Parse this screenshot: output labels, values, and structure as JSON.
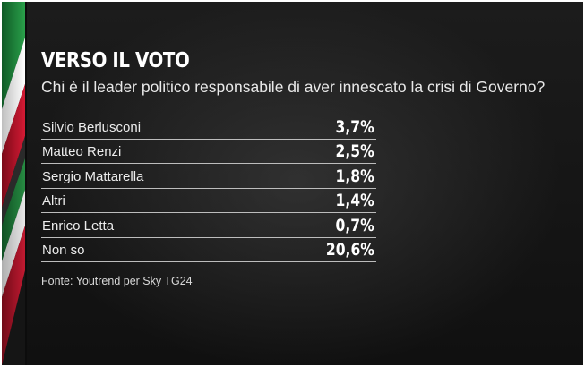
{
  "header": {
    "title": "VERSO IL VOTO",
    "subtitle": "Chi è il leader politico responsabile di aver innescato la crisi di Governo?"
  },
  "chart_data": {
    "type": "table",
    "title": "VERSO IL VOTO",
    "subtitle": "Chi è il leader politico responsabile di aver innescato la crisi di Governo?",
    "categories": [
      "Silvio Berlusconi",
      "Matteo Renzi",
      "Sergio Mattarella",
      "Altri",
      "Enrico Letta",
      "Non so"
    ],
    "values": [
      3.7,
      2.5,
      1.8,
      1.4,
      0.7,
      20.6
    ],
    "value_labels": [
      "3,7%",
      "2,5%",
      "1,8%",
      "1,4%",
      "0,7%",
      "20,6%"
    ],
    "unit": "%"
  },
  "footer": {
    "source": "Fonte: Youtrend per Sky TG24"
  },
  "colors": {
    "background": "#141414",
    "text": "#ffffff",
    "divider": "#bdbdbd",
    "flag_green": "#1e8a3c",
    "flag_white": "#f2f2f2",
    "flag_red": "#c8102e"
  }
}
